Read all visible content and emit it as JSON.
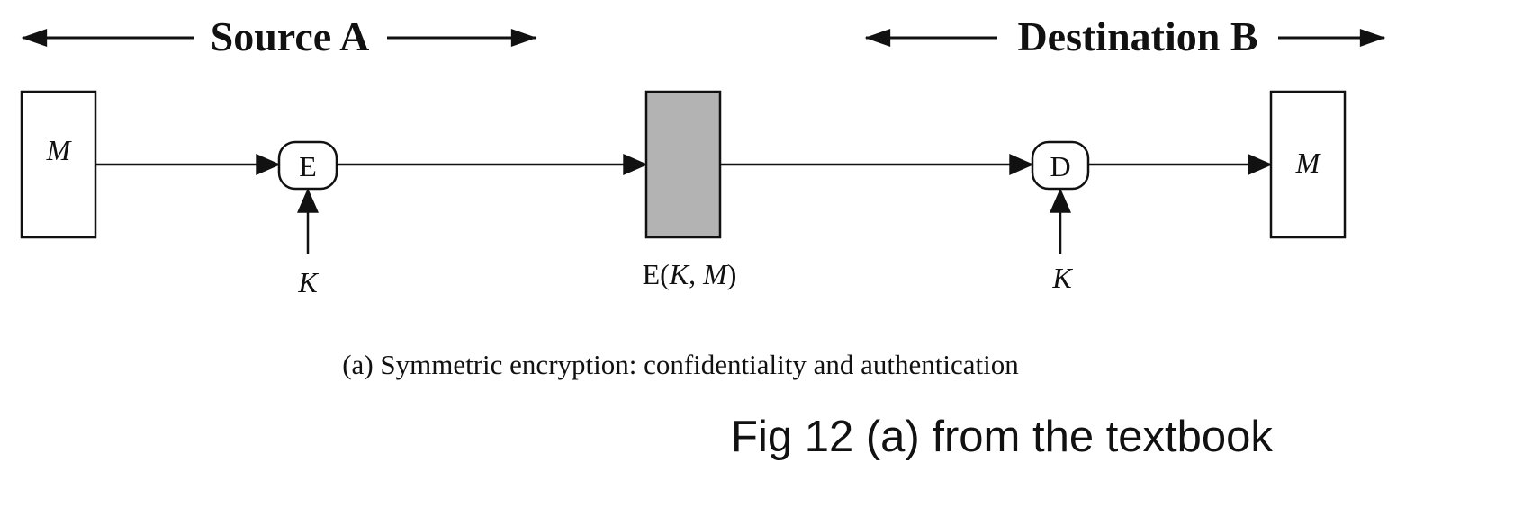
{
  "header": {
    "source_label": "Source A",
    "destination_label": "Destination B"
  },
  "nodes": {
    "source_message": "M",
    "encrypt": "E",
    "ciphertext_prefix": "E(",
    "ciphertext_key": "K",
    "ciphertext_sep": ", ",
    "ciphertext_msg": "M",
    "ciphertext_suffix": ")",
    "decrypt": "D",
    "destination_message": "M"
  },
  "keys": {
    "encrypt_key": "K",
    "decrypt_key": "K"
  },
  "caption": "(a) Symmetric encryption: confidentiality and authentication",
  "note": "Fig 12 (a) from the textbook",
  "colors": {
    "stroke": "#111111",
    "ciphertext_fill": "#b3b3b3",
    "background": "#ffffff"
  }
}
